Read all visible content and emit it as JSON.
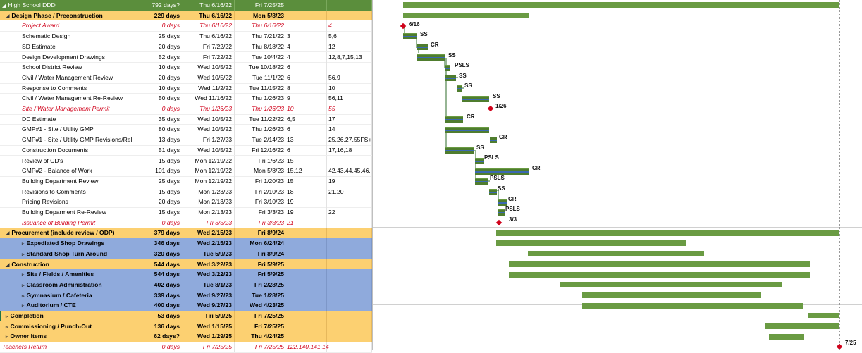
{
  "rows": [
    {
      "name": "High School DDD",
      "dur": "792 days?",
      "start": "Thu 6/16/22",
      "finish": "Fri 7/25/25",
      "pred": "",
      "succ": "",
      "style": "green",
      "level": 0,
      "tri": "◢"
    },
    {
      "name": "Design Phase / Preconstruction",
      "dur": "229 days",
      "start": "Thu 6/16/22",
      "finish": "Mon 5/8/23",
      "pred": "",
      "succ": "",
      "style": "yellow grp",
      "level": 1,
      "tri": "◢"
    },
    {
      "name": "Project Award",
      "dur": "0 days",
      "start": "Thu 6/16/22",
      "finish": "Thu 6/16/22",
      "pred": "",
      "succ": "4",
      "style": "plain mile",
      "level": 2,
      "tri": ""
    },
    {
      "name": "Schematic Design",
      "dur": "25 days",
      "start": "Thu 6/16/22",
      "finish": "Thu 7/21/22",
      "pred": "3",
      "succ": "5,6",
      "style": "plain",
      "level": 2,
      "tri": ""
    },
    {
      "name": "SD Estimate",
      "dur": "20 days",
      "start": "Fri 7/22/22",
      "finish": "Thu 8/18/22",
      "pred": "4",
      "succ": "12",
      "style": "plain",
      "level": 2,
      "tri": ""
    },
    {
      "name": "Design Development Drawings",
      "dur": "52 days",
      "start": "Fri 7/22/22",
      "finish": "Tue 10/4/22",
      "pred": "4",
      "succ": "12,8,7,15,13",
      "style": "plain",
      "level": 2,
      "tri": ""
    },
    {
      "name": "School District Review",
      "dur": "10 days",
      "start": "Wed 10/5/22",
      "finish": "Tue 10/18/22",
      "pred": "6",
      "succ": "",
      "style": "plain",
      "level": 2,
      "tri": ""
    },
    {
      "name": "Civil / Water Management Review",
      "dur": "20 days",
      "start": "Wed 10/5/22",
      "finish": "Tue 11/1/22",
      "pred": "6",
      "succ": "56,9",
      "style": "plain",
      "level": 2,
      "tri": ""
    },
    {
      "name": "Response to Comments",
      "dur": "10 days",
      "start": "Wed 11/2/22",
      "finish": "Tue 11/15/22",
      "pred": "8",
      "succ": "10",
      "style": "plain",
      "level": 2,
      "tri": ""
    },
    {
      "name": "Civil / Water Management Re-Review",
      "dur": "50 days",
      "start": "Wed 11/16/22",
      "finish": "Thu 1/26/23",
      "pred": "9",
      "succ": "56,11",
      "style": "plain",
      "level": 2,
      "tri": ""
    },
    {
      "name": "Site / Water Management Permit",
      "dur": "0 days",
      "start": "Thu 1/26/23",
      "finish": "Thu 1/26/23",
      "pred": "10",
      "succ": "55",
      "style": "plain mile",
      "level": 2,
      "tri": ""
    },
    {
      "name": "DD Estimate",
      "dur": "35 days",
      "start": "Wed 10/5/22",
      "finish": "Tue 11/22/22",
      "pred": "6,5",
      "succ": "17",
      "style": "plain",
      "level": 2,
      "tri": ""
    },
    {
      "name": "GMP#1 - Site / Utility GMP",
      "dur": "80 days",
      "start": "Wed 10/5/22",
      "finish": "Thu 1/26/23",
      "pred": "6",
      "succ": "14",
      "style": "plain",
      "level": 2,
      "tri": ""
    },
    {
      "name": "GMP#1 - Site / Utility GMP Revisions/Rel",
      "dur": "13 days",
      "start": "Fri 1/27/23",
      "finish": "Tue 2/14/23",
      "pred": "13",
      "succ": "25,26,27,55FS+",
      "style": "plain",
      "level": 2,
      "tri": ""
    },
    {
      "name": "Construction Documents",
      "dur": "51 days",
      "start": "Wed 10/5/22",
      "finish": "Fri 12/16/22",
      "pred": "6",
      "succ": "17,16,18",
      "style": "plain",
      "level": 2,
      "tri": ""
    },
    {
      "name": "Review of CD's",
      "dur": "15 days",
      "start": "Mon 12/19/22",
      "finish": "Fri 1/6/23",
      "pred": "15",
      "succ": "",
      "style": "plain",
      "level": 2,
      "tri": ""
    },
    {
      "name": "GMP#2 - Balance of Work",
      "dur": "101 days",
      "start": "Mon 12/19/22",
      "finish": "Mon 5/8/23",
      "pred": "15,12",
      "succ": "42,43,44,45,46,",
      "style": "plain",
      "level": 2,
      "tri": ""
    },
    {
      "name": "Building Department Review",
      "dur": "25 days",
      "start": "Mon 12/19/22",
      "finish": "Fri 1/20/23",
      "pred": "15",
      "succ": "19",
      "style": "plain",
      "level": 2,
      "tri": ""
    },
    {
      "name": "Revisions to Comments",
      "dur": "15 days",
      "start": "Mon 1/23/23",
      "finish": "Fri 2/10/23",
      "pred": "18",
      "succ": "21,20",
      "style": "plain",
      "level": 2,
      "tri": ""
    },
    {
      "name": "Pricing Revisions",
      "dur": "20 days",
      "start": "Mon 2/13/23",
      "finish": "Fri 3/10/23",
      "pred": "19",
      "succ": "",
      "style": "plain",
      "level": 2,
      "tri": ""
    },
    {
      "name": "Building Deparment Re-Review",
      "dur": "15 days",
      "start": "Mon 2/13/23",
      "finish": "Fri 3/3/23",
      "pred": "19",
      "succ": "22",
      "style": "plain",
      "level": 2,
      "tri": ""
    },
    {
      "name": "Issuance of Building Permit",
      "dur": "0 days",
      "start": "Fri 3/3/23",
      "finish": "Fri 3/3/23",
      "pred": "21",
      "succ": "",
      "style": "plain mile",
      "level": 2,
      "tri": ""
    },
    {
      "name": "Procurement (include review / ODP)",
      "dur": "379 days",
      "start": "Wed 2/15/23",
      "finish": "Fri 8/9/24",
      "pred": "",
      "succ": "",
      "style": "yellow grp",
      "level": 1,
      "tri": "◢"
    },
    {
      "name": "Expediated Shop Drawings",
      "dur": "346 days",
      "start": "Wed 2/15/23",
      "finish": "Mon 6/24/24",
      "pred": "",
      "succ": "",
      "style": "blue grp",
      "level": 2,
      "tri": "▹"
    },
    {
      "name": "Standard Shop Turn Around",
      "dur": "320 days",
      "start": "Tue 5/9/23",
      "finish": "Fri 8/9/24",
      "pred": "",
      "succ": "",
      "style": "blue grp",
      "level": 2,
      "tri": "▹"
    },
    {
      "name": "Construction",
      "dur": "544 days",
      "start": "Wed 3/22/23",
      "finish": "Fri 5/9/25",
      "pred": "",
      "succ": "",
      "style": "yellow grp",
      "level": 1,
      "tri": "◢"
    },
    {
      "name": "Site / Fields / Amenities",
      "dur": "544 days",
      "start": "Wed 3/22/23",
      "finish": "Fri 5/9/25",
      "pred": "",
      "succ": "",
      "style": "blue grp",
      "level": 2,
      "tri": "▹"
    },
    {
      "name": "Classroom Administration",
      "dur": "402 days",
      "start": "Tue 8/1/23",
      "finish": "Fri 2/28/25",
      "pred": "",
      "succ": "",
      "style": "blue grp",
      "level": 2,
      "tri": "▹"
    },
    {
      "name": "Gymnasium / Cafeteria",
      "dur": "339 days",
      "start": "Wed 9/27/23",
      "finish": "Tue 1/28/25",
      "pred": "",
      "succ": "",
      "style": "blue grp",
      "level": 2,
      "tri": "▹"
    },
    {
      "name": "Auditorium / CTE",
      "dur": "400 days",
      "start": "Wed 9/27/23",
      "finish": "Wed 4/23/25",
      "pred": "",
      "succ": "",
      "style": "blue grp",
      "level": 2,
      "tri": "▹"
    },
    {
      "name": "Completion",
      "dur": "53 days",
      "start": "Fri 5/9/25",
      "finish": "Fri 7/25/25",
      "pred": "",
      "succ": "",
      "style": "yellow grp sel",
      "level": 1,
      "tri": "▹"
    },
    {
      "name": "Commissioning / Punch-Out",
      "dur": "136 days",
      "start": "Wed 1/15/25",
      "finish": "Fri 7/25/25",
      "pred": "",
      "succ": "",
      "style": "yellow grp",
      "level": 1,
      "tri": "▹"
    },
    {
      "name": "Owner Items",
      "dur": "62 days?",
      "start": "Wed 1/29/25",
      "finish": "Thu 4/24/25",
      "pred": "",
      "succ": "",
      "style": "yellow grp",
      "level": 1,
      "tri": "▹"
    },
    {
      "name": "Teachers Return",
      "dur": "0 days",
      "start": "Fri 7/25/25",
      "finish": "Fri 7/25/25",
      "pred": "122,140,141,14",
      "succ": "",
      "style": "plain mile",
      "level": 0,
      "tri": ""
    }
  ],
  "gantt": {
    "link_labels": [
      "SS",
      "CR",
      "SS",
      "PSLS",
      "SS",
      "SS",
      "SS",
      "CR",
      "CR",
      "SS",
      "PSLS",
      "CR",
      "PSLS",
      "SS",
      "CR",
      "PSLS"
    ],
    "milestone_labels": [
      "6/16",
      "1/26",
      "3/3",
      "7/25"
    ]
  }
}
